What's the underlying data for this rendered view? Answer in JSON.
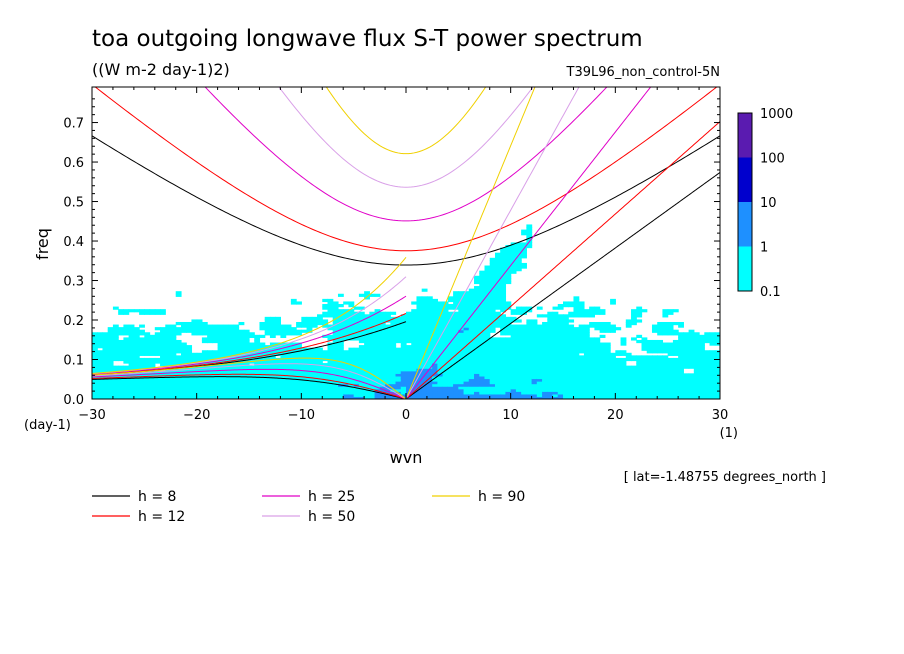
{
  "chart_data": {
    "type": "heatmap",
    "title": "toa outgoing longwave flux S-T power spectrum",
    "units_label": "((W m-2 day-1)2)",
    "run_label": "T39L96_non_control-5N",
    "xlabel": "wvn",
    "ylabel": "freq",
    "x_units": "(1)",
    "y_units": "(day-1)",
    "xlim": [
      -30,
      30
    ],
    "ylim": [
      0,
      0.79
    ],
    "x_ticks": [
      -30,
      -20,
      -10,
      0,
      10,
      20,
      30
    ],
    "x_tick_labels": [
      "−30",
      "−20",
      "−10",
      "0",
      "10",
      "20",
      "30"
    ],
    "y_ticks": [
      0,
      0.1,
      0.2,
      0.3,
      0.4,
      0.5,
      0.6,
      0.7
    ],
    "y_tick_labels": [
      "0.0",
      "0.1",
      "0.2",
      "0.3",
      "0.4",
      "0.5",
      "0.6",
      "0.7"
    ],
    "lat_note": "[ lat=-1.48755 degrees_north ]",
    "colorbar": {
      "levels": [
        0.1,
        1,
        10,
        100,
        1000
      ],
      "labels": [
        "0.1",
        "1",
        "10",
        "100",
        "1000"
      ],
      "colors": [
        "#00ffff",
        "#1e90ff",
        "#0000cd",
        "#5a1bb0"
      ]
    },
    "dispersion_curves": [
      {
        "label": "h =  8",
        "h": 8,
        "color": "#000000"
      },
      {
        "label": "h = 12",
        "h": 12,
        "color": "#ff0000"
      },
      {
        "label": "h = 25",
        "h": 25,
        "color": "#e000c8"
      },
      {
        "label": "h = 50",
        "h": 50,
        "color": "#d9a0e8"
      },
      {
        "label": "h = 90",
        "h": 90,
        "color": "#f0d000"
      }
    ],
    "curve_families": [
      "kelvin",
      "inertia_gravity_n1",
      "mixed_rossby_gravity",
      "equatorial_rossby_n1"
    ],
    "legend_position": "bottom"
  }
}
